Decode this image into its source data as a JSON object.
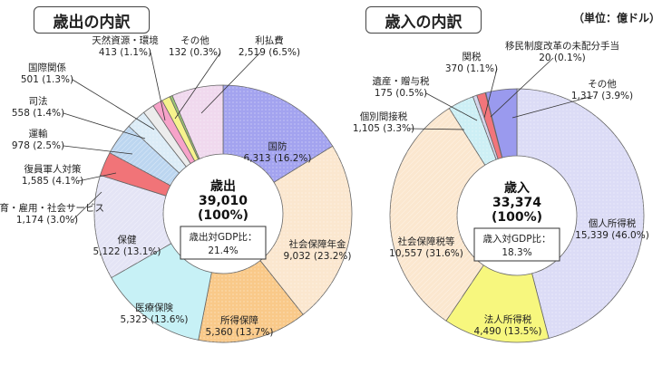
{
  "unit_note": "（単位：億ドル）",
  "chart_data": [
    {
      "type": "pie",
      "title": "歳出の内訳",
      "center": {
        "label": "歳出",
        "total": "39,010",
        "pct": "(100%)",
        "ratio_label": "歳出対GDP比：",
        "ratio_value": "21.4%"
      },
      "slices": [
        {
          "name": "国防",
          "value": 6313,
          "pct": "16.2%",
          "text": "6,313 (16.2%)",
          "color": "#a3a3ef"
        },
        {
          "name": "社会保障年金",
          "value": 9032,
          "pct": "23.2%",
          "text": "9,032 (23.2%)",
          "color": "#fbe7cf"
        },
        {
          "name": "所得保障",
          "value": 5360,
          "pct": "13.7%",
          "text": "5,360 (13.7%)",
          "color": "#f9c989"
        },
        {
          "name": "医療保険",
          "value": 5323,
          "pct": "13.6%",
          "text": "5,323 (13.6%)",
          "color": "#c7f1f6"
        },
        {
          "name": "保健",
          "value": 5122,
          "pct": "13.1%",
          "text": "5,122 (13.1%)",
          "color": "#e4e4f5"
        },
        {
          "name": "教育・雇用・社会サービス",
          "value": 1174,
          "pct": "3.0%",
          "text": "1,174 (3.0%)",
          "color": "#f17478"
        },
        {
          "name": "復員軍人対策",
          "value": 1585,
          "pct": "4.1%",
          "text": "1,585 (4.1%)",
          "color": "#bcd6f0"
        },
        {
          "name": "運輸",
          "value": 978,
          "pct": "2.5%",
          "text": "978 (2.5%)",
          "color": "#dcecf7"
        },
        {
          "name": "司法",
          "value": 558,
          "pct": "1.4%",
          "text": "558 (1.4%)",
          "color": "#ececec"
        },
        {
          "name": "国際関係",
          "value": 501,
          "pct": "1.3%",
          "text": "501 (1.3%)",
          "color": "#f7a3c9"
        },
        {
          "name": "天然資源・環境",
          "value": 413,
          "pct": "1.1%",
          "text": "413 (1.1%)",
          "color": "#f6f38d"
        },
        {
          "name": "その他",
          "value": 132,
          "pct": "0.3%",
          "text": "132 (0.3%)",
          "color": "#9cc773"
        },
        {
          "name": "利払費",
          "value": 2519,
          "pct": "6.5%",
          "text": "2,519 (6.5%)",
          "color": "#f0d9ee"
        }
      ]
    },
    {
      "type": "pie",
      "title": "歳入の内訳",
      "center": {
        "label": "歳入",
        "total": "33,374",
        "pct": "(100%)",
        "ratio_label": "歳入対GDP比：",
        "ratio_value": "18.3%"
      },
      "slices": [
        {
          "name": "個人所得税",
          "value": 15339,
          "pct": "46.0%",
          "text": "15,339 (46.0%)",
          "color": "#dcdcf6"
        },
        {
          "name": "法人所得税",
          "value": 4490,
          "pct": "13.5%",
          "text": "4,490 (13.5%)",
          "color": "#f7f77e"
        },
        {
          "name": "社会保障税等",
          "value": 10557,
          "pct": "31.6%",
          "text": "10,557 (31.6%)",
          "color": "#fbe7cf"
        },
        {
          "name": "個別間接税",
          "value": 1105,
          "pct": "3.3%",
          "text": "1,105 (3.3%)",
          "color": "#cdeff5"
        },
        {
          "name": "遺産・贈与税",
          "value": 175,
          "pct": "0.5%",
          "text": "175 (0.5%)",
          "color": "#d3d3ea"
        },
        {
          "name": "関税",
          "value": 370,
          "pct": "1.1%",
          "text": "370 (1.1%)",
          "color": "#f2757b"
        },
        {
          "name": "移民制度改革の未配分手当",
          "value": 20,
          "pct": "0.1%",
          "text": "20 (0.1%)",
          "color": "#8c8c8c"
        },
        {
          "name": "その他",
          "value": 1317,
          "pct": "3.9%",
          "text": "1,317 (3.9%)",
          "color": "#9a9aee"
        }
      ]
    }
  ]
}
